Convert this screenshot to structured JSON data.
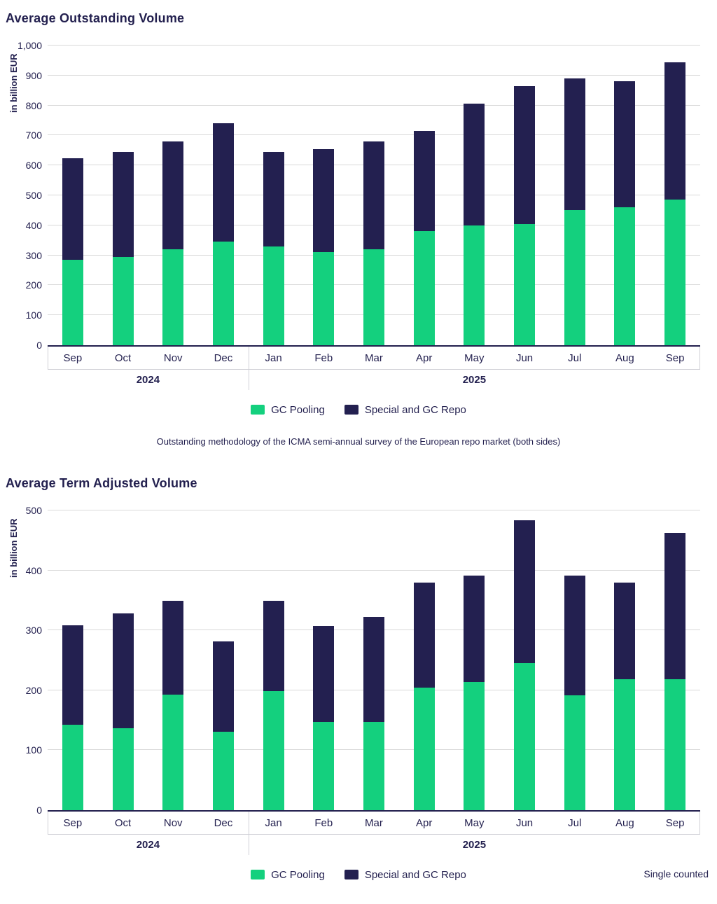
{
  "colors": {
    "gc_pooling": "#14d07e",
    "special_repo": "#232050",
    "grid": "#d9d9d9",
    "text": "#221f4e"
  },
  "legend": {
    "items": [
      "GC Pooling",
      "Special and GC Repo"
    ]
  },
  "chart_data": [
    {
      "type": "bar",
      "stacked": true,
      "title": "Average Outstanding Volume",
      "ylabel": "in billion EUR",
      "ylim": [
        0,
        1000
      ],
      "ytick_interval": 100,
      "grid": true,
      "legend_position": "bottom",
      "categories": [
        "Sep",
        "Oct",
        "Nov",
        "Dec",
        "Jan",
        "Feb",
        "Mar",
        "Apr",
        "May",
        "Jun",
        "Jul",
        "Aug",
        "Sep"
      ],
      "year_groups": [
        {
          "label": "2024",
          "span": 4
        },
        {
          "label": "2025",
          "span": 9
        }
      ],
      "series": [
        {
          "name": "GC Pooling",
          "values": [
            285,
            295,
            320,
            345,
            330,
            310,
            320,
            380,
            400,
            405,
            450,
            460,
            485
          ]
        },
        {
          "name": "Special and GC Repo",
          "values": [
            340,
            350,
            360,
            395,
            315,
            345,
            360,
            335,
            405,
            460,
            440,
            420,
            460
          ]
        }
      ],
      "totals": [
        625,
        645,
        680,
        740,
        645,
        655,
        680,
        715,
        805,
        865,
        890,
        880,
        945
      ],
      "caption": "Outstanding methodology of the ICMA semi-annual survey of the European repo market (both sides)"
    },
    {
      "type": "bar",
      "stacked": true,
      "title": "Average Term Adjusted Volume",
      "ylabel": "in billion EUR",
      "ylim": [
        0,
        500
      ],
      "ytick_interval": 100,
      "grid": true,
      "legend_position": "bottom",
      "categories": [
        "Sep",
        "Oct",
        "Nov",
        "Dec",
        "Jan",
        "Feb",
        "Mar",
        "Apr",
        "May",
        "Jun",
        "Jul",
        "Aug",
        "Sep"
      ],
      "year_groups": [
        {
          "label": "2024",
          "span": 4
        },
        {
          "label": "2025",
          "span": 9
        }
      ],
      "series": [
        {
          "name": "GC Pooling",
          "values": [
            142,
            137,
            193,
            131,
            199,
            147,
            147,
            204,
            214,
            245,
            192,
            219,
            219
          ]
        },
        {
          "name": "Special and GC Repo",
          "values": [
            166,
            191,
            156,
            150,
            150,
            160,
            176,
            176,
            177,
            239,
            199,
            161,
            244
          ]
        }
      ],
      "totals": [
        308,
        328,
        349,
        281,
        349,
        307,
        323,
        380,
        391,
        484,
        391,
        380,
        463
      ],
      "note": "Single counted"
    }
  ]
}
